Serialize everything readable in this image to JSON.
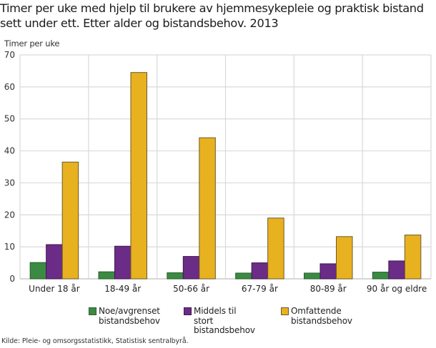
{
  "chart_data": {
    "type": "bar",
    "title": "Timer per uke med hjelp til brukere av hjemmesykepleie og praktisk bistand sett under ett. Etter alder og bistandsbehov. 2013",
    "xlabel": "",
    "ylabel": "Timer per uke",
    "ylim": [
      0,
      70
    ],
    "yticks": [
      0,
      10,
      20,
      30,
      40,
      50,
      60,
      70
    ],
    "grid": true,
    "legend_position": "bottom",
    "categories": [
      "Under 18 år",
      "18-49 år",
      "50-66 år",
      "67-79 år",
      "80-89 år",
      "90 år og eldre"
    ],
    "series": [
      {
        "name": "Noe/avgrenset\nbistandsbehov",
        "color": "#3b8a42",
        "border": "#2b5e2e",
        "values": [
          5.1,
          2.2,
          1.9,
          1.8,
          1.8,
          2.1
        ]
      },
      {
        "name": "Middels til stort\nbistandsbehov",
        "color": "#6b2c87",
        "border": "#3e1750",
        "values": [
          10.7,
          10.2,
          7.0,
          5.0,
          4.7,
          5.6
        ]
      },
      {
        "name": "Omfattende\nbistandsbehov",
        "color": "#e8b11f",
        "border": "#6b5a2a",
        "values": [
          36.5,
          64.5,
          44.1,
          19.0,
          13.2,
          13.7
        ]
      }
    ],
    "source": "Kilde: Pleie- og omsorgsstatistikk, Statistisk sentralbyrå."
  },
  "colors": {
    "grid": "#d9d9d9",
    "axis": "#bdbdbd"
  }
}
